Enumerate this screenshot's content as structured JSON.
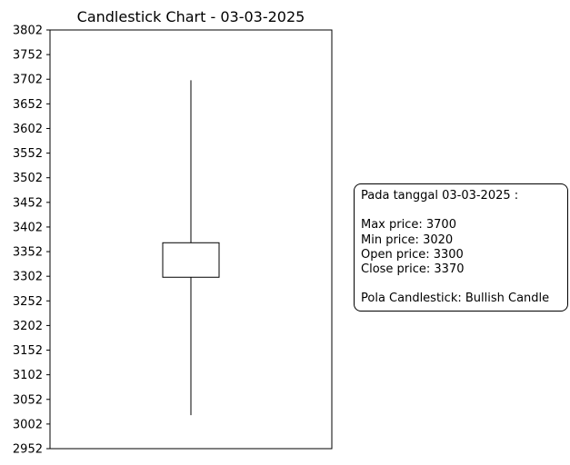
{
  "chart_data": {
    "type": "candlestick",
    "title": "Candlestick Chart - 03-03-2025",
    "xlabel": "",
    "ylabel": "",
    "ylim": [
      2952,
      3802
    ],
    "yticks": [
      2952,
      3002,
      3052,
      3102,
      3152,
      3202,
      3252,
      3302,
      3352,
      3402,
      3452,
      3502,
      3552,
      3602,
      3652,
      3702,
      3752,
      3802
    ],
    "grid": false,
    "candles": [
      {
        "date": "03-03-2025",
        "open": 3300,
        "close": 3370,
        "high": 3700,
        "low": 3020
      }
    ],
    "colors": {
      "body_fill": "#ffffff",
      "body_stroke": "#000000",
      "wick": "#000000",
      "axis": "#000000"
    }
  },
  "annotation": {
    "header": "Pada tanggal 03-03-2025 :",
    "max_label": "Max price: 3700",
    "min_label": "Min price: 3020",
    "open_label": "Open price: 3300",
    "close_label": "Close price: 3370",
    "pattern_label": "Pola Candlestick: Bullish Candle"
  }
}
